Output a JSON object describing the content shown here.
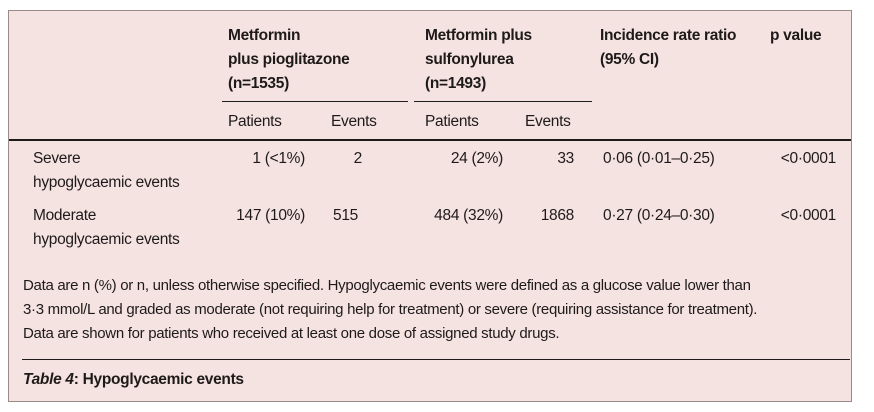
{
  "table": {
    "group_headers": [
      {
        "line1": "Metformin",
        "line2": "plus pioglitazone",
        "line3": "(n=1535)"
      },
      {
        "line1": "Metformin plus",
        "line2": "sulfonylurea",
        "line3": "(n=1493)"
      }
    ],
    "irr_header": {
      "line1": "Incidence rate ratio",
      "line2": "(95% CI)"
    },
    "p_header": "p value",
    "sub_headers": [
      "Patients",
      "Events",
      "Patients",
      "Events"
    ],
    "rows": [
      {
        "label1": "Severe",
        "label2": "hypoglycaemic events",
        "pio_patients": "1 (<1%)",
        "pio_events": "2",
        "su_patients": "24 (2%)",
        "su_events": "33",
        "irr": "0·06 (0·01–0·25)",
        "p": "<0·0001"
      },
      {
        "label1": "Moderate",
        "label2": "hypoglycaemic events",
        "pio_patients": "147 (10%)",
        "pio_events": "515",
        "su_patients": "484 (32%)",
        "su_events": "1868",
        "irr": "0·27 (0·24–0·30)",
        "p": "<0·0001"
      }
    ],
    "footnote": [
      "Data are n (%) or n, unless otherwise specified. Hypoglycaemic events were defined as a glucose value lower than",
      "3·3 mmol/L and graded as moderate (not requiring help for treatment) or severe (requiring assistance for treatment).",
      "Data are shown for patients who received at least one dose of assigned study drugs."
    ],
    "caption_label": "Table 4",
    "caption_text": ": Hypoglycaemic events"
  }
}
